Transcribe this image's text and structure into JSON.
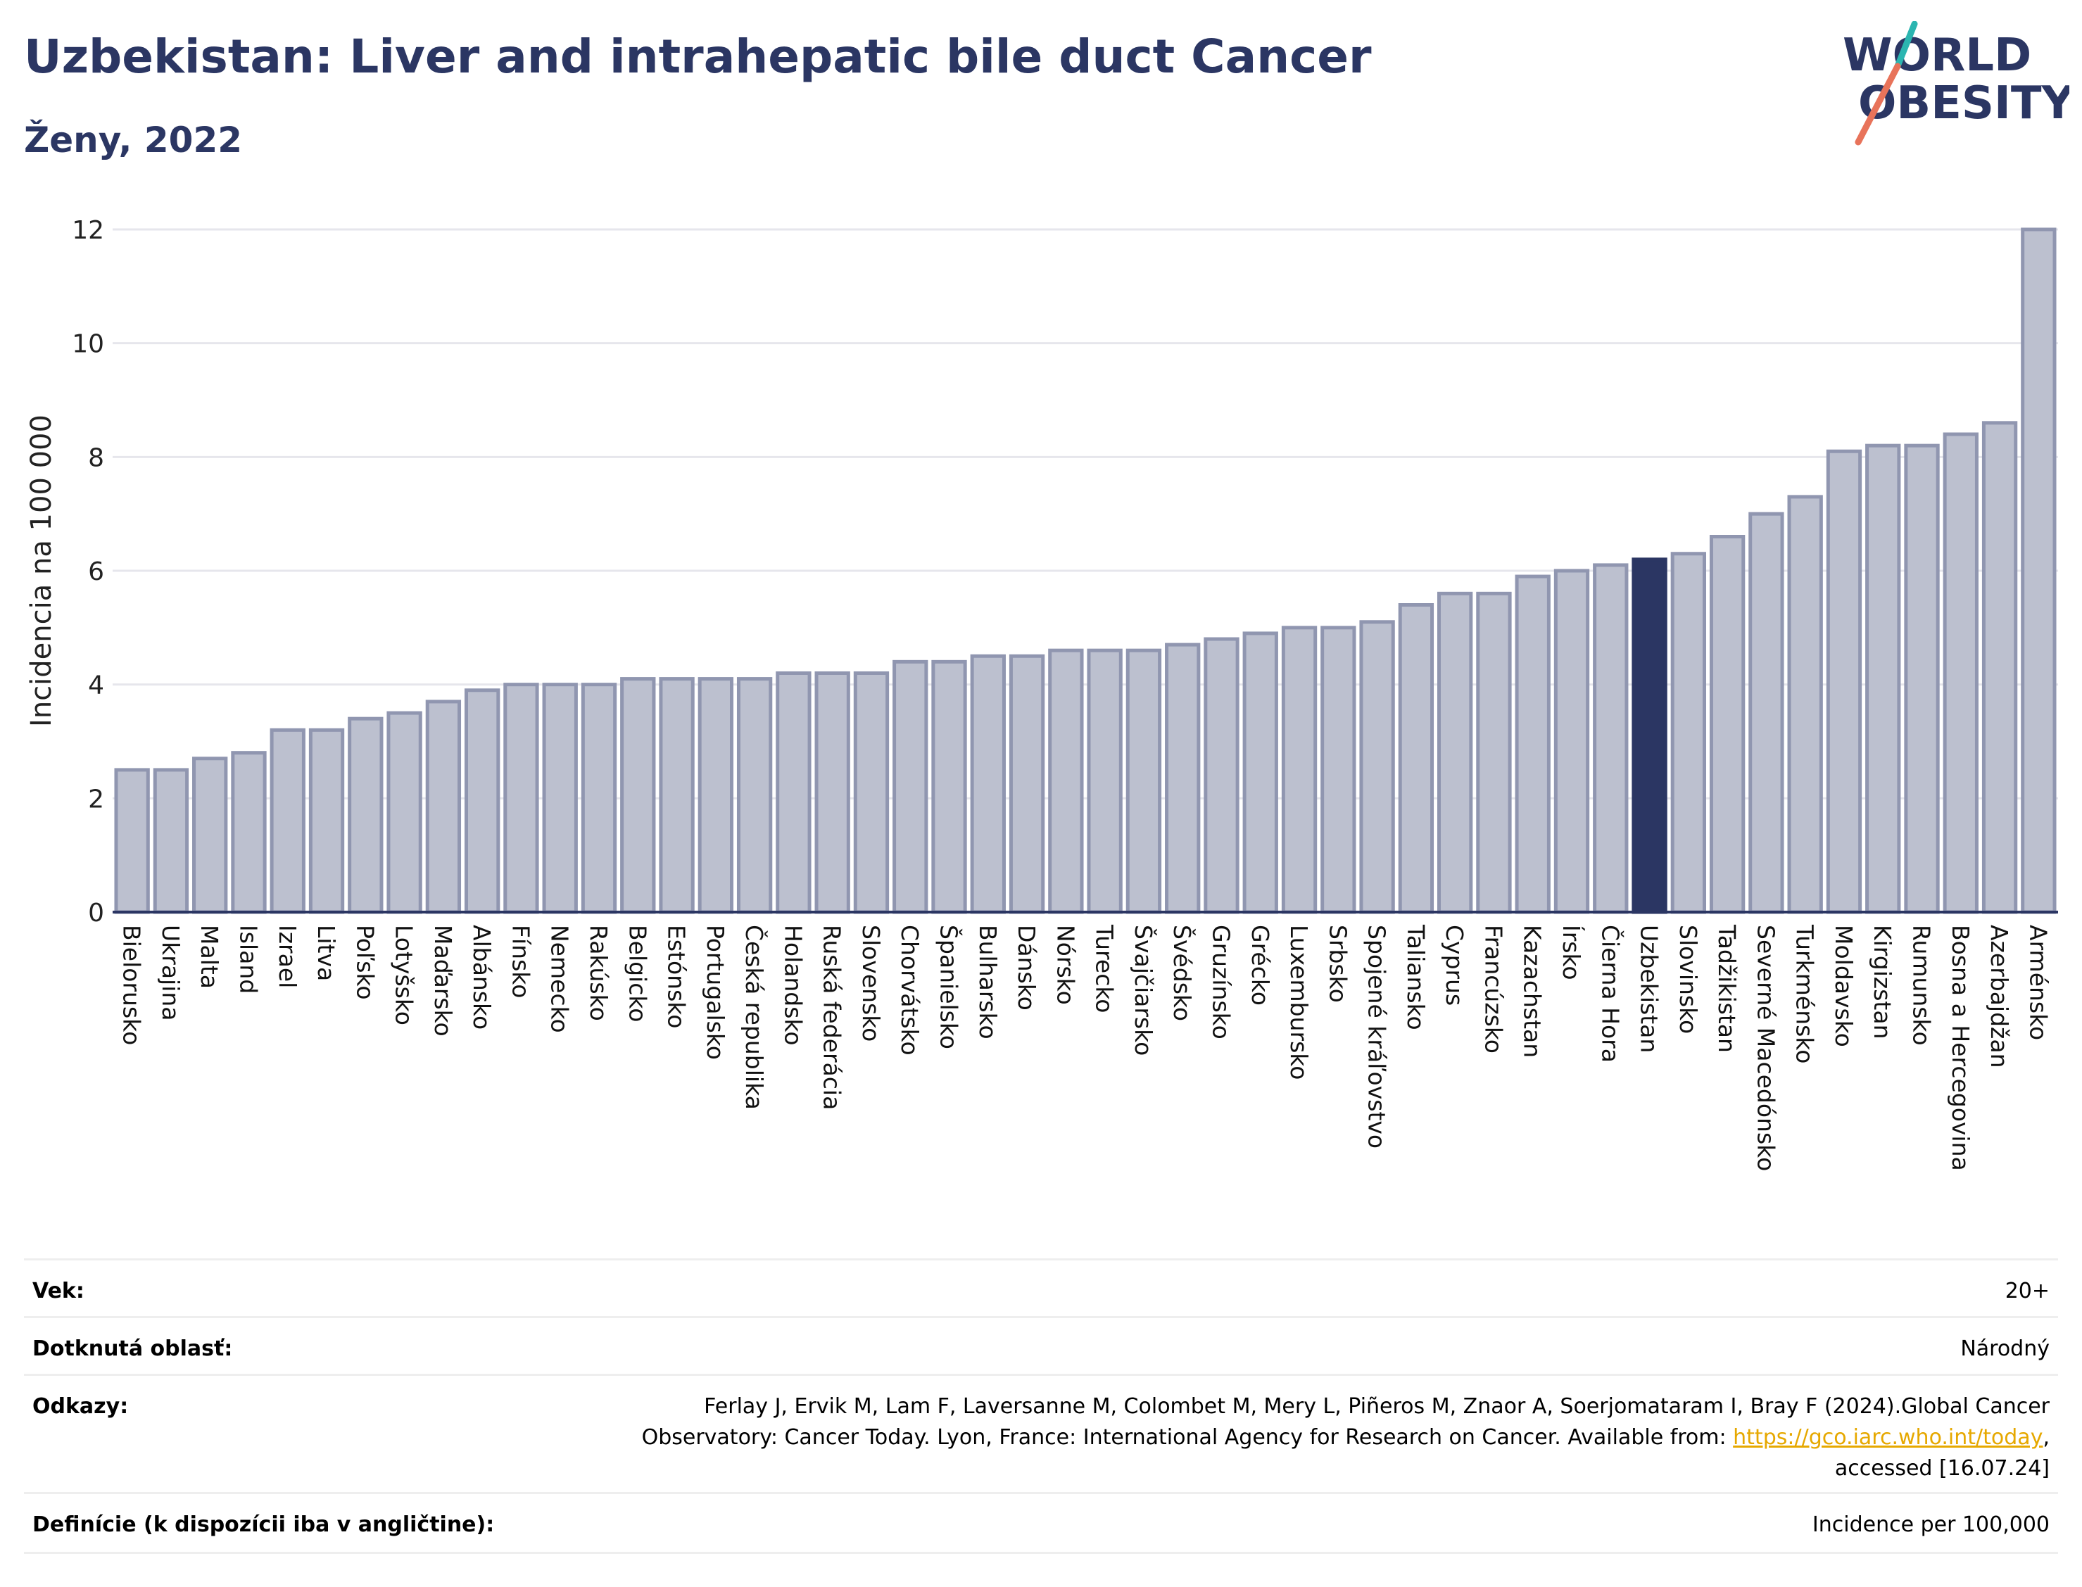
{
  "header": {
    "title": "Uzbekistan: Liver and intrahepatic bile duct Cancer",
    "subtitle": "Ženy, 2022"
  },
  "logo": {
    "line1": "WORLD",
    "line2": "OBESITY",
    "accent_teal": "#2bb5b0",
    "accent_coral": "#e8735a",
    "text_color": "#2b3663"
  },
  "colors": {
    "bar_fill": "#bcc0cf",
    "bar_stroke": "#9096b0",
    "highlight_fill": "#2b3663",
    "grid": "#e6e6ec",
    "axis": "#2b3663"
  },
  "chart_data": {
    "type": "bar",
    "title": "",
    "xlabel": "",
    "ylabel": "Incidencia na 100 000",
    "ylim": [
      0,
      12
    ],
    "yticks": [
      0,
      2,
      4,
      6,
      8,
      10,
      12
    ],
    "grid": true,
    "highlight": "Uzbekistan",
    "categories": [
      "Bielorusko",
      "Ukrajina",
      "Malta",
      "Island",
      "Izrael",
      "Litva",
      "Poľsko",
      "Lotyšsko",
      "Maďarsko",
      "Albánsko",
      "Fínsko",
      "Nemecko",
      "Rakúsko",
      "Belgicko",
      "Estónsko",
      "Portugalsko",
      "Česká republika",
      "Holandsko",
      "Ruská federácia",
      "Slovensko",
      "Chorvátsko",
      "Španielsko",
      "Bulharsko",
      "Dánsko",
      "Nórsko",
      "Turecko",
      "Švajčiarsko",
      "Švédsko",
      "Gruzínsko",
      "Grécko",
      "Luxembursko",
      "Srbsko",
      "Spojené kráľovstvo",
      "Taliansko",
      "Cyprus",
      "Francúzsko",
      "Kazachstan",
      "Írsko",
      "Čierna Hora",
      "Uzbekistan",
      "Slovinsko",
      "Tadžikistan",
      "Severné Macedónsko",
      "Turkménsko",
      "Moldavsko",
      "Kirgizstan",
      "Rumunsko",
      "Bosna a Hercegovina",
      "Azerbajdžan",
      "Arménsko"
    ],
    "values": [
      2.5,
      2.5,
      2.7,
      2.8,
      3.2,
      3.2,
      3.4,
      3.5,
      3.7,
      3.9,
      4.0,
      4.0,
      4.0,
      4.1,
      4.1,
      4.1,
      4.1,
      4.2,
      4.2,
      4.2,
      4.4,
      4.4,
      4.5,
      4.5,
      4.6,
      4.6,
      4.6,
      4.7,
      4.8,
      4.9,
      5.0,
      5.0,
      5.1,
      5.4,
      5.6,
      5.6,
      5.9,
      6.0,
      6.1,
      6.2,
      6.3,
      6.6,
      7.0,
      7.3,
      8.1,
      8.2,
      8.2,
      8.4,
      8.6,
      12.0
    ]
  },
  "meta": {
    "age_label": "Vek:",
    "age_value": "20+",
    "area_label": "Dotknutá oblasť:",
    "area_value": "Národný",
    "refs_label": "Odkazy:",
    "refs_line1": "Ferlay J, Ervik M, Lam F, Laversanne M, Colombet M, Mery L, Piñeros M, Znaor A, Soerjomataram I, Bray F (2024).Global Cancer",
    "refs_line2_prefix": "Observatory: Cancer Today. Lyon, France: International Agency for Research on Cancer. Available from: ",
    "refs_link": "https://gco.iarc.who.int/today",
    "refs_line2_suffix": ",",
    "refs_line3": "accessed [16.07.24]",
    "defs_label": "Definície (k dispozícii iba v angličtine):",
    "defs_value": "Incidence per 100,000"
  }
}
